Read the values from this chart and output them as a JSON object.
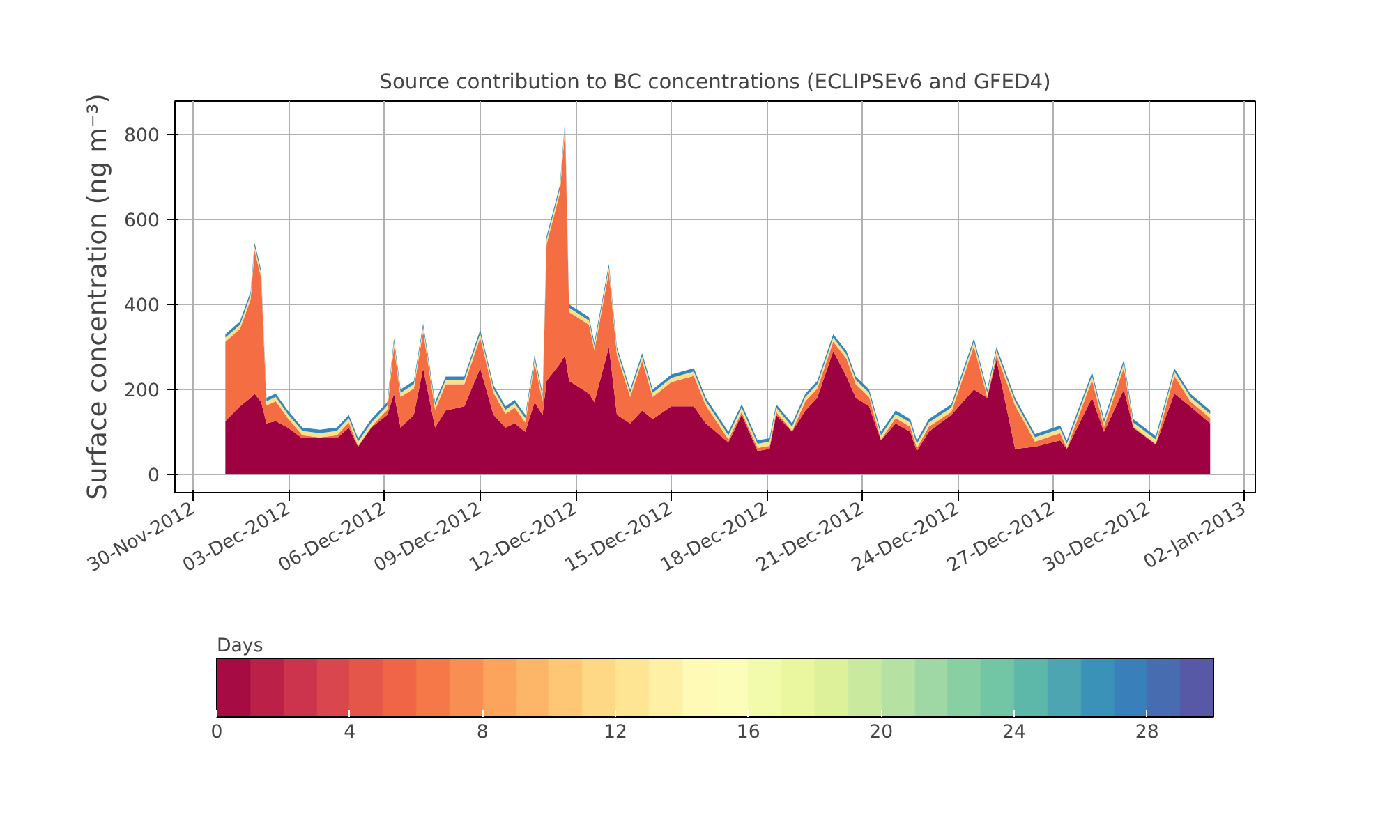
{
  "chart_data": {
    "type": "area",
    "stacked": true,
    "title": "Source contribution to BC concentrations (ECLIPSEv6 and GFED4)",
    "ylabel": "Surface concentration (ng m⁻³)",
    "clabel": "Days",
    "clim": [
      0,
      30
    ],
    "cticks": [
      0,
      4,
      8,
      12,
      16,
      20,
      24,
      28
    ],
    "x": [
      "2012-12-01T00:00",
      "2012-12-01T11:00",
      "2012-12-01T19:00",
      "2012-12-01T22:00",
      "2012-12-02T03:00",
      "2012-12-02T07:00",
      "2012-12-02T14:00",
      "2012-12-02T23:00",
      "2012-12-03T10:00",
      "2012-12-03T23:00",
      "2012-12-04T12:00",
      "2012-12-04T21:00",
      "2012-12-05T04:00",
      "2012-12-05T14:00",
      "2012-12-06T02:00",
      "2012-12-06T07:00",
      "2012-12-06T12:00",
      "2012-12-06T22:00",
      "2012-12-07T05:00",
      "2012-12-07T14:00",
      "2012-12-07T22:00",
      "2012-12-08T12:00",
      "2012-12-09T00:00",
      "2012-12-09T10:00",
      "2012-12-09T19:00",
      "2012-12-10T02:00",
      "2012-12-10T10:00",
      "2012-12-10T17:00",
      "2012-12-10T23:00",
      "2012-12-11T02:00",
      "2012-12-11T12:00",
      "2012-12-11T16:00",
      "2012-12-11T19:00",
      "2012-12-12T10:00",
      "2012-12-12T14:00",
      "2012-12-13T01:00",
      "2012-12-13T07:00",
      "2012-12-13T17:00",
      "2012-12-14T02:00",
      "2012-12-14T10:00",
      "2012-12-15T00:00",
      "2012-12-15T17:00",
      "2012-12-16T02:00",
      "2012-12-16T19:00",
      "2012-12-17T05:00",
      "2012-12-17T17:00",
      "2012-12-18T02:00",
      "2012-12-18T07:00",
      "2012-12-18T19:00",
      "2012-12-19T05:00",
      "2012-12-19T14:00",
      "2012-12-20T02:00",
      "2012-12-20T12:00",
      "2012-12-20T19:00",
      "2012-12-21T05:00",
      "2012-12-21T14:00",
      "2012-12-22T01:00",
      "2012-12-22T12:00",
      "2012-12-22T17:00",
      "2012-12-23T02:00",
      "2012-12-23T19:00",
      "2012-12-24T12:00",
      "2012-12-24T22:00",
      "2012-12-25T05:00",
      "2012-12-25T19:00",
      "2012-12-26T10:00",
      "2012-12-27T05:00",
      "2012-12-27T10:00",
      "2012-12-28T05:00",
      "2012-12-28T14:00",
      "2012-12-29T05:00",
      "2012-12-29T12:00",
      "2012-12-30T05:00",
      "2012-12-30T19:00",
      "2012-12-31T07:00",
      "2012-12-31T22:00"
    ],
    "series": [
      {
        "color": "#9e0142",
        "values": [
          125,
          160,
          180,
          190,
          170,
          120,
          125,
          110,
          85,
          85,
          85,
          110,
          65,
          110,
          140,
          190,
          110,
          140,
          250,
          110,
          150,
          160,
          250,
          140,
          110,
          120,
          100,
          170,
          140,
          220,
          260,
          280,
          220,
          190,
          170,
          300,
          140,
          120,
          150,
          130,
          160,
          160,
          120,
          75,
          140,
          55,
          60,
          140,
          100,
          150,
          180,
          290,
          230,
          180,
          160,
          80,
          120,
          100,
          55,
          100,
          140,
          200,
          180,
          270,
          60,
          65,
          80,
          60,
          180,
          100,
          200,
          110,
          70,
          190,
          160,
          120
        ]
      },
      {
        "color": "#f46d43",
        "values": [
          187,
          182,
          232,
          337,
          292,
          42,
          47,
          22,
          7,
          2,
          7,
          12,
          2,
          2,
          12,
          112,
          72,
          62,
          87,
          42,
          62,
          52,
          72,
          52,
          32,
          37,
          22,
          92,
          32,
          322,
          402,
          537,
          162,
          162,
          122,
          177,
          142,
          62,
          117,
          52,
          57,
          72,
          42,
          7,
          7,
          7,
          7,
          7,
          2,
          22,
          22,
          22,
          42,
          32,
          22,
          2,
          12,
          12,
          7,
          12,
          7,
          102,
          2,
          12,
          102,
          12,
          17,
          2,
          42,
          12,
          52,
          2,
          2,
          42,
          12,
          12
        ]
      },
      {
        "color": "#fee08b",
        "values": [
          10,
          10,
          10,
          10,
          10,
          10,
          10,
          10,
          10,
          10,
          10,
          10,
          10,
          10,
          10,
          10,
          10,
          10,
          10,
          10,
          10,
          10,
          10,
          10,
          10,
          10,
          10,
          10,
          10,
          10,
          10,
          10,
          10,
          10,
          10,
          10,
          10,
          10,
          10,
          10,
          10,
          10,
          10,
          10,
          10,
          10,
          10,
          10,
          10,
          10,
          10,
          10,
          10,
          10,
          10,
          10,
          10,
          10,
          10,
          10,
          10,
          10,
          10,
          10,
          10,
          10,
          10,
          10,
          10,
          10,
          10,
          10,
          10,
          10,
          10,
          10
        ]
      },
      {
        "color": "#3288bd",
        "values": [
          8,
          8,
          8,
          8,
          8,
          8,
          8,
          8,
          8,
          8,
          8,
          8,
          8,
          8,
          8,
          8,
          8,
          8,
          8,
          8,
          8,
          8,
          8,
          8,
          8,
          8,
          8,
          8,
          8,
          8,
          8,
          8,
          8,
          8,
          8,
          8,
          8,
          8,
          8,
          8,
          8,
          8,
          8,
          8,
          8,
          8,
          8,
          8,
          8,
          8,
          8,
          8,
          8,
          8,
          8,
          8,
          8,
          8,
          8,
          8,
          8,
          8,
          8,
          8,
          8,
          8,
          8,
          8,
          8,
          8,
          8,
          8,
          8,
          8,
          8,
          8
        ]
      }
    ],
    "xlim": [
      "2012-11-29T10:00",
      "2013-01-02T08:00"
    ],
    "xticks": [
      {
        "value": "2012-11-30",
        "label": "30-Nov-2012"
      },
      {
        "value": "2012-12-03",
        "label": "03-Dec-2012"
      },
      {
        "value": "2012-12-06",
        "label": "06-Dec-2012"
      },
      {
        "value": "2012-12-09",
        "label": "09-Dec-2012"
      },
      {
        "value": "2012-12-12",
        "label": "12-Dec-2012"
      },
      {
        "value": "2012-12-15",
        "label": "15-Dec-2012"
      },
      {
        "value": "2012-12-18",
        "label": "18-Dec-2012"
      },
      {
        "value": "2012-12-21",
        "label": "21-Dec-2012"
      },
      {
        "value": "2012-12-24",
        "label": "24-Dec-2012"
      },
      {
        "value": "2012-12-27",
        "label": "27-Dec-2012"
      },
      {
        "value": "2012-12-30",
        "label": "30-Dec-2012"
      },
      {
        "value": "2013-01-02",
        "label": "02-Jan-2013"
      }
    ],
    "ylim": [
      -43,
      879
    ],
    "yticks": [
      0,
      200,
      400,
      600,
      800
    ],
    "grid": true
  }
}
